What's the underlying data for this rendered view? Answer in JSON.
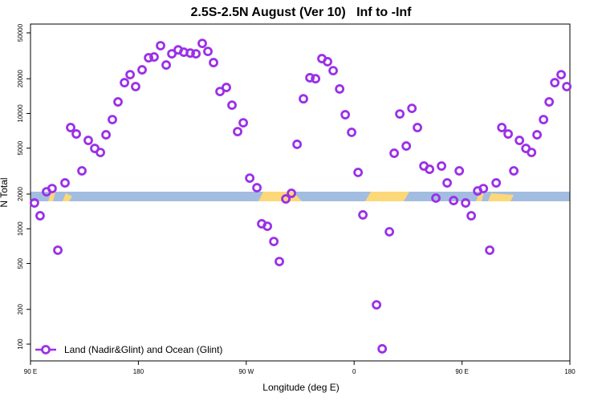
{
  "chart_data": {
    "type": "scatter",
    "title": "2.5S-2.5N August (Ver 10)   Inf to -Inf",
    "x_label": "Longitude (deg E)",
    "y_label": "N Total",
    "yscale": "log",
    "xlim": [
      90,
      540
    ],
    "ylim": [
      71.5,
      59600
    ],
    "xticks": [
      {
        "value": 90,
        "label": "90 E"
      },
      {
        "value": 180,
        "label": "180"
      },
      {
        "value": 270,
        "label": "90 W"
      },
      {
        "value": 360,
        "label": "0"
      },
      {
        "value": 450,
        "label": "90 E"
      },
      {
        "value": 540,
        "label": "180"
      }
    ],
    "yticks": [
      100,
      200,
      500,
      1000,
      2000,
      5000,
      10000,
      20000,
      50000
    ],
    "legend": "lower left",
    "x": [
      93.3,
      98,
      103.4,
      108,
      112.8,
      118.8,
      123.5,
      128.2,
      132.9,
      138.2,
      143.6,
      148.3,
      153,
      158.3,
      163,
      168.4,
      173.1,
      177.7,
      183.1,
      188.5,
      193.1,
      198.5,
      203.2,
      207.9,
      213.2,
      217.9,
      223.3,
      228,
      233.3,
      238,
      242.7,
      248.1,
      253.4,
      258.1,
      262.8,
      267.5,
      272.9,
      278.9,
      282.9,
      287.6,
      293,
      297.6,
      303,
      307.7,
      312.4,
      317.7,
      323.1,
      327.8,
      333.1,
      337.8,
      342.5,
      347.9,
      352.6,
      357.9,
      363.3,
      367.3,
      378.7,
      383.4,
      389.4,
      393.4,
      398.1,
      403.5,
      408.2,
      412.8,
      418.2,
      422.9,
      428.2,
      432.9,
      437.6,
      443,
      447.7,
      453,
      457.7,
      463.1,
      467.8,
      473.1,
      478.5,
      483.2,
      488.5,
      493.2,
      497.9,
      503.3,
      508,
      512.6,
      518,
      522.7,
      527.4,
      532.7,
      537.4
    ],
    "series": [
      {
        "name": "Land (Nadir&Glint) and Ocean (Glint)",
        "color": "#9b30e8",
        "values": [
          1675,
          1297,
          2094,
          2233,
          652,
          2500,
          7550,
          6640,
          3180,
          5840,
          4975,
          4590,
          6530,
          8850,
          12600,
          18500,
          21700,
          17100,
          23900,
          30400,
          30900,
          38700,
          26300,
          32900,
          35600,
          34000,
          33400,
          32900,
          40500,
          34500,
          27600,
          15500,
          16800,
          11800,
          6960,
          8300,
          2750,
          2270,
          1104,
          1052,
          776,
          520,
          1815,
          2030,
          5400,
          13400,
          20400,
          20000,
          29900,
          28100,
          23500,
          16300,
          9750,
          6860,
          3080,
          1320,
          219,
          91,
          942,
          4520,
          9900,
          5220,
          11070,
          7550,
          3500,
          3280,
          1845,
          3500,
          2500,
          1757,
          3180,
          1675,
          1297,
          2130,
          2233,
          652,
          2500,
          7550,
          6640,
          3180,
          5840,
          4975,
          4590,
          6530,
          8850,
          12600,
          18500,
          21700,
          17100
        ]
      }
    ]
  }
}
